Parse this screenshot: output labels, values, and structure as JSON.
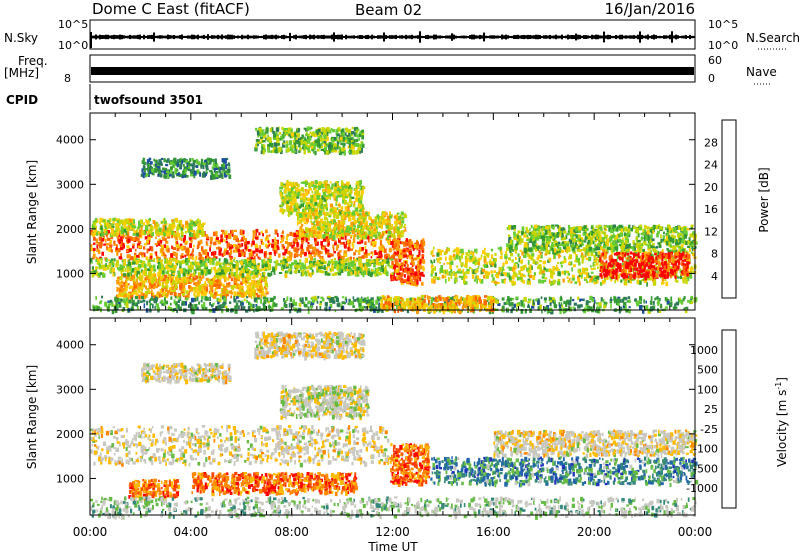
{
  "header": {
    "title": "Dome C East (fitACF)",
    "beam": "Beam 02",
    "date": "16/Jan/2016"
  },
  "strips": {
    "nsky_label": "N.Sky",
    "nsky_ticks": [
      "10^5",
      "10^0"
    ],
    "nsearch_label": "N.Search",
    "nsearch_ticks": [
      "10^5",
      "10^0"
    ],
    "freq_label": "Freq.",
    "freq_unit": "[MHz]",
    "freq_ticks": [
      "8"
    ],
    "nave_label": "Nave",
    "nave_ticks": [
      "60",
      "0"
    ],
    "cpid_label": "CPID",
    "cpid_value": "twofsound 3501"
  },
  "chart_data": [
    {
      "type": "heatmap",
      "name": "power-panel",
      "ylabel": "Slant Range [km]",
      "yticks": [
        1000,
        2000,
        3000,
        4000
      ],
      "ylim": [
        180,
        4600
      ],
      "xlim": [
        0,
        24
      ],
      "colorbar": {
        "label": "Power [dB]",
        "ticks": [
          "28",
          "24",
          "20",
          "16",
          "12",
          "8",
          "4"
        ],
        "colors": [
          "#ff0000",
          "#ff6600",
          "#ff9900",
          "#ffcc00",
          "#c8d600",
          "#66cc33",
          "#339933",
          "#2d7a5a",
          "#1d4f9c",
          "#0000ff"
        ]
      },
      "regions": [
        {
          "t0": 0.0,
          "t1": 11.9,
          "r0": 1350,
          "r1": 2000,
          "level": 0.82
        },
        {
          "t0": 0.0,
          "t1": 4.5,
          "r0": 1900,
          "r1": 2250,
          "level": 0.55
        },
        {
          "t0": 11.9,
          "t1": 13.2,
          "r0": 800,
          "r1": 1800,
          "level": 0.85
        },
        {
          "t0": 7.5,
          "t1": 10.8,
          "r0": 2350,
          "r1": 3100,
          "level": 0.55
        },
        {
          "t0": 8.2,
          "t1": 12.5,
          "r0": 1850,
          "r1": 2400,
          "level": 0.6
        },
        {
          "t0": 1.0,
          "t1": 7.0,
          "r0": 500,
          "r1": 1000,
          "level": 0.7
        },
        {
          "t0": 0.0,
          "t1": 12.0,
          "r0": 1000,
          "r1": 1350,
          "level": 0.5
        },
        {
          "t0": 13.5,
          "t1": 24.0,
          "r0": 800,
          "r1": 1600,
          "level": 0.55
        },
        {
          "t0": 16.5,
          "t1": 24.0,
          "r0": 1550,
          "r1": 2100,
          "level": 0.45
        },
        {
          "t0": 20.2,
          "t1": 23.7,
          "r0": 950,
          "r1": 1500,
          "level": 0.93
        },
        {
          "t0": 0.0,
          "t1": 24.0,
          "r0": 180,
          "r1": 500,
          "level": 0.35
        },
        {
          "t0": 11.5,
          "t1": 16.0,
          "r0": 180,
          "r1": 520,
          "level": 0.7
        },
        {
          "t0": 2.0,
          "t1": 5.5,
          "r0": 3200,
          "r1": 3600,
          "level": 0.3
        },
        {
          "t0": 6.5,
          "t1": 10.8,
          "r0": 3750,
          "r1": 4300,
          "level": 0.45
        }
      ]
    },
    {
      "type": "heatmap",
      "name": "velocity-panel",
      "ylabel": "Slant Range [km]",
      "xlabel": "Time UT",
      "xticks": [
        "00:00",
        "04:00",
        "08:00",
        "12:00",
        "16:00",
        "20:00",
        "00:00"
      ],
      "yticks": [
        1000,
        2000,
        3000,
        4000
      ],
      "ylim": [
        180,
        4600
      ],
      "xlim": [
        0,
        24
      ],
      "colorbar": {
        "label": "Velocity [m s",
        "label_sup": "-1",
        "label_end": "]",
        "ticks": [
          "1000",
          "500",
          "100",
          "25",
          "-25",
          "-100",
          "-500",
          "-1000"
        ],
        "colors": [
          "#2233bb",
          "#2266aa",
          "#33887a",
          "#66bb44",
          "#c8c8c0",
          "#c8c8c0",
          "#ffbb00",
          "#ff8800",
          "#ff4400",
          "#ff0000"
        ]
      },
      "regions": [
        {
          "t0": 0.0,
          "t1": 11.9,
          "r0": 1350,
          "r1": 2200,
          "level": 0.45
        },
        {
          "t0": 11.9,
          "t1": 13.4,
          "r0": 900,
          "r1": 1800,
          "level": 0.2
        },
        {
          "t0": 4.0,
          "t1": 10.5,
          "r0": 700,
          "r1": 1150,
          "level": 0.2
        },
        {
          "t0": 1.5,
          "t1": 3.5,
          "r0": 600,
          "r1": 1000,
          "level": 0.22
        },
        {
          "t0": 7.5,
          "t1": 11.0,
          "r0": 2400,
          "r1": 3100,
          "level": 0.5
        },
        {
          "t0": 13.5,
          "t1": 24.0,
          "r0": 900,
          "r1": 1500,
          "level": 0.75
        },
        {
          "t0": 16.0,
          "t1": 24.0,
          "r0": 1550,
          "r1": 2100,
          "level": 0.45
        },
        {
          "t0": 0.0,
          "t1": 24.0,
          "r0": 180,
          "r1": 600,
          "level": 0.6
        },
        {
          "t0": 6.5,
          "t1": 10.8,
          "r0": 3750,
          "r1": 4300,
          "level": 0.45
        },
        {
          "t0": 2.0,
          "t1": 5.5,
          "r0": 3200,
          "r1": 3600,
          "level": 0.45
        }
      ]
    }
  ],
  "axes": {
    "xlabel": "Time UT"
  }
}
